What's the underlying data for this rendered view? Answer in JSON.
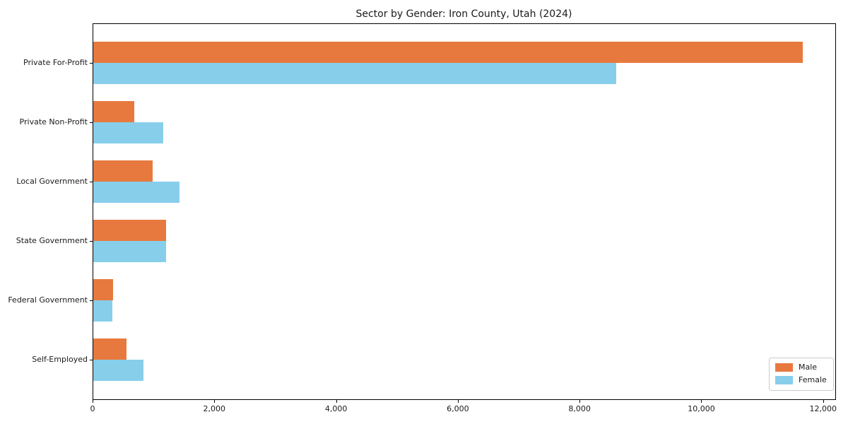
{
  "figure": {
    "background": "#ffffff"
  },
  "chart_data": {
    "type": "bar",
    "orientation": "horizontal",
    "title": "Sector by Gender: Iron County, Utah (2024)",
    "categories": [
      "Private For-Profit",
      "Private Non-Profit",
      "Local Government",
      "State Government",
      "Federal Government",
      "Self-Employed"
    ],
    "series": [
      {
        "name": "Male",
        "color": "#E8793E",
        "values": [
          11650,
          675,
          975,
          1200,
          325,
          550
        ]
      },
      {
        "name": "Female",
        "color": "#87CEEB",
        "values": [
          8590,
          1150,
          1420,
          1190,
          315,
          820
        ]
      }
    ],
    "xlabel": "",
    "ylabel": "",
    "xlim": [
      0,
      12200
    ],
    "xticks": [
      0,
      2000,
      4000,
      6000,
      8000,
      10000,
      12000
    ],
    "xtick_labels": [
      "0",
      "2,000",
      "4,000",
      "6,000",
      "8,000",
      "10,000",
      "12,000"
    ],
    "legend": {
      "position": "lower-right",
      "entries": [
        {
          "label": "Male",
          "color": "#E8793E"
        },
        {
          "label": "Female",
          "color": "#87CEEB"
        }
      ]
    },
    "grid": false,
    "axis_color": "#000000",
    "text_color": "#1a1a1a"
  }
}
